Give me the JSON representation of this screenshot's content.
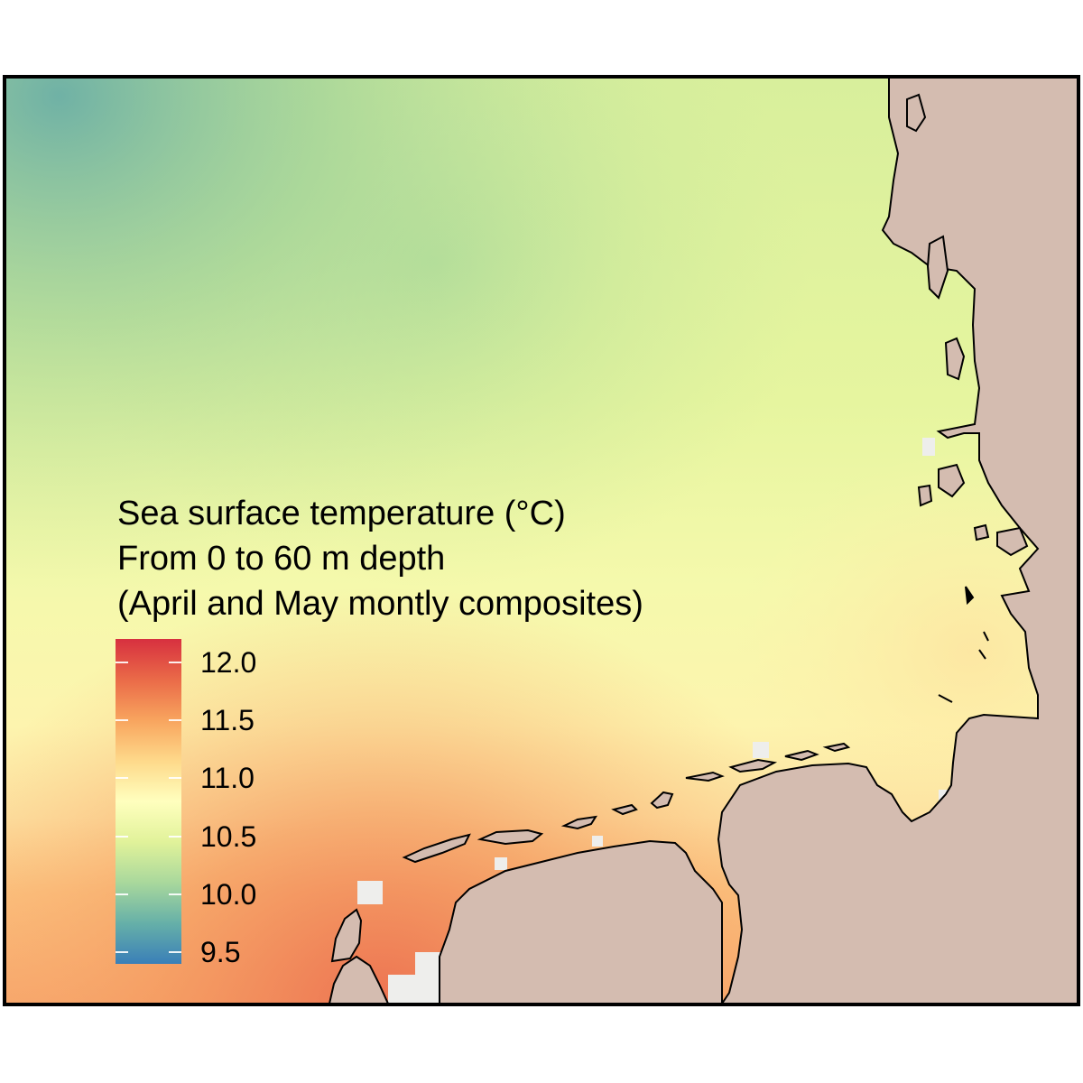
{
  "legend": {
    "title_lines": [
      "Sea surface temperature (°C)",
      "From 0 to 60 m depth",
      "(April and May montly composites)"
    ],
    "ticks": [
      "12.0",
      "11.5",
      "11.0",
      "10.5",
      "10.0",
      "9.5"
    ],
    "range": [
      9.4,
      12.2
    ],
    "tick_values": [
      12.0,
      11.5,
      11.0,
      10.5,
      10.0,
      9.5
    ],
    "scale": [
      "#3a7fb8",
      "#66b0a8",
      "#a9d89c",
      "#e1f29a",
      "#ffffbe",
      "#fed98a",
      "#f8a45e",
      "#ea6a48",
      "#d7303f"
    ]
  },
  "colors": {
    "land": "#d4bcb0",
    "nodata": "#eeeeec",
    "coast": "#000000"
  }
}
